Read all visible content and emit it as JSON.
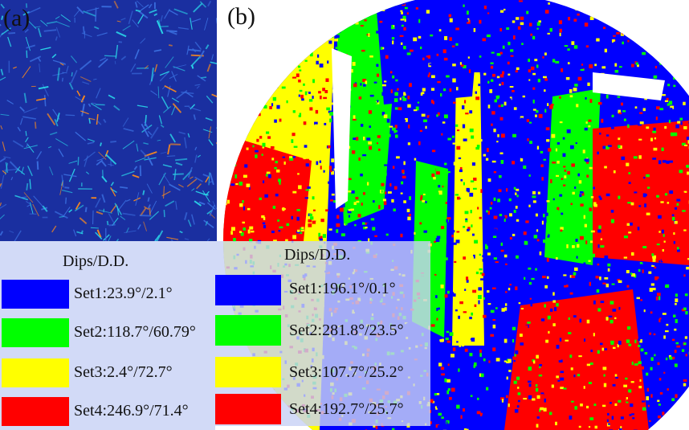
{
  "panel_a": {
    "label": "(a)",
    "legend": {
      "title": "Dips/D.D.",
      "entries": [
        {
          "label": "Set1:23.9°/2.1°",
          "color": "#0000ff"
        },
        {
          "label": "Set2:118.7°/60.79°",
          "color": "#00ff00"
        },
        {
          "label": "Set3:2.4°/72.7°",
          "color": "#ffff00"
        },
        {
          "label": "Set4:246.9°/71.4°",
          "color": "#ff0000"
        }
      ]
    },
    "colors": {
      "background": "#1a2fa0",
      "accent_cyan": "#2ad4e8",
      "accent_orange": "#ff8c1a"
    }
  },
  "panel_b": {
    "label": "(b)",
    "legend": {
      "title": "Dips/D.D.",
      "entries": [
        {
          "label": "Set1:196.1°/0.1°",
          "color": "#0000ff"
        },
        {
          "label": "Set2:281.8°/23.5°",
          "color": "#00ff00"
        },
        {
          "label": "Set3:107.7°/25.2°",
          "color": "#ffff00"
        },
        {
          "label": "Set4:192.7°/25.7°",
          "color": "#ff0000"
        }
      ]
    }
  }
}
